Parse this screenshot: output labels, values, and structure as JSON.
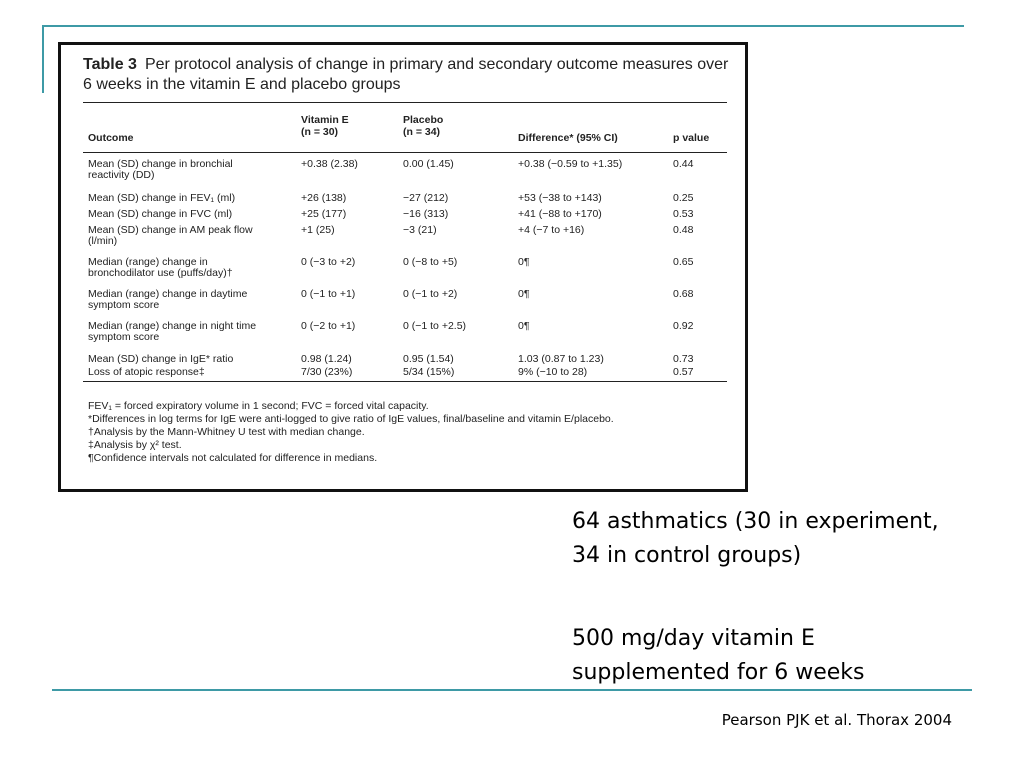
{
  "table": {
    "number": "Table 3",
    "title": "Per protocol analysis of change in primary and secondary outcome measures over 6 weeks in the vitamin E and placebo groups",
    "headers": [
      "Outcome",
      "Vitamin E\n(n = 30)",
      "Placebo\n(n = 34)",
      "Difference* (95% CI)",
      "p value"
    ],
    "rows": [
      [
        "Mean (SD) change in bronchial reactivity (DD)",
        "+0.38 (2.38)",
        "0.00 (1.45)",
        "+0.38 (−0.59 to +1.35)",
        "0.44"
      ],
      [
        "Mean (SD) change in FEV₁ (ml)",
        "+26 (138)",
        "−27 (212)",
        "+53 (−38 to +143)",
        "0.25"
      ],
      [
        "Mean (SD) change in FVC (ml)",
        "+25 (177)",
        "−16 (313)",
        "+41 (−88 to +170)",
        "0.53"
      ],
      [
        "Mean (SD) change in AM peak flow (l/min)",
        "+1 (25)",
        "−3 (21)",
        "+4 (−7 to +16)",
        "0.48"
      ],
      [
        "Median (range) change in bronchodilator use (puffs/day)†",
        "0 (−3 to +2)",
        "0 (−8 to +5)",
        "0¶",
        "0.65"
      ],
      [
        "Median (range) change in daytime symptom score",
        "0 (−1 to +1)",
        "0 (−1 to +2)",
        "0¶",
        "0.68"
      ],
      [
        "Median (range) change in night time symptom score",
        "0 (−2 to +1)",
        "0 (−1 to +2.5)",
        "0¶",
        "0.92"
      ],
      [
        "Mean (SD) change in IgE* ratio",
        "0.98 (1.24)",
        "0.95 (1.54)",
        "1.03 (0.87 to 1.23)",
        "0.73"
      ],
      [
        "Loss of atopic response‡",
        "7/30 (23%)",
        "5/34 (15%)",
        "9% (−10 to 28)",
        "0.57"
      ]
    ],
    "footnotes": [
      "FEV₁ = forced expiratory volume in 1 second; FVC = forced vital capacity.",
      "*Differences in log terms for IgE were anti-logged to give ratio of IgE values, final/baseline and vitamin E/placebo.",
      "†Analysis by the Mann-Whitney U test with median change.",
      "‡Analysis by χ² test.",
      "¶Confidence intervals not calculated for difference in medians."
    ]
  },
  "bullets": [
    "64 asthmatics (30 in experiment, 34 in control groups)",
    "500 mg/day vitamin E supplemented for 6 weeks"
  ],
  "citation": "Pearson PJK et al. Thorax 2004",
  "colors": {
    "accent_line": "#3e9aa6",
    "border": "#111111"
  }
}
